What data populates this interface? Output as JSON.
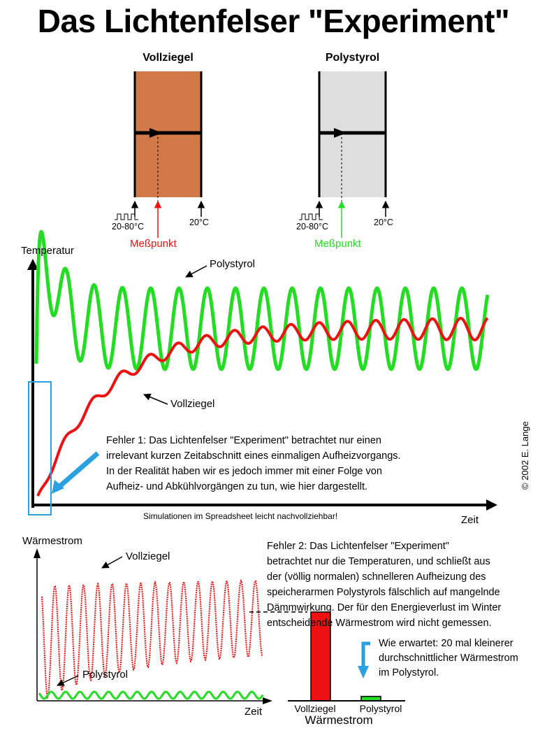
{
  "title": "Das Lichtenfelser \"Experiment\"",
  "walls": {
    "brick": {
      "label": "Vollziegel",
      "color": "#d2794a"
    },
    "poly": {
      "label": "Polystyrol",
      "color": "#dedede"
    },
    "inside_temp": "20-80°C",
    "outside_temp": "20°C",
    "measure_label": "Meßpunkt"
  },
  "temperature_chart": {
    "ylabel": "Temperatur",
    "xlabel": "Zeit",
    "caption": "Simulationen im Spreadsheet leicht nachvollziehbar!",
    "label_poly": "Polystyrol",
    "label_brick": "Vollziegel",
    "note": [
      "Fehler 1: Das Lichtenfelser \"Experiment\" betrachtet nur einen",
      "irrelevant kurzen Zeitabschnitt eines einmaligen Aufheizvorgangs.",
      "In der Realität haben wir es jedoch immer mit einer Folge von",
      "Aufheiz- und Abkühlvorgängen zu tun, wie hier dargestellt."
    ],
    "colors": {
      "poly": "#22dd22",
      "brick": "#ee1111",
      "highlight": "#2aa0e0"
    }
  },
  "heatflow_chart": {
    "ylabel": "Wärmestrom",
    "xlabel": "Zeit",
    "label_brick": "Vollziegel",
    "label_poly": "Polystyrol",
    "note": [
      "Fehler 2: Das Lichtenfelser \"Experiment\"",
      "betrachtet nur die Temperaturen, und schließt aus",
      "der (völlig normalen) schnelleren Aufheizung des",
      "speicherarmen Polystyrols fälschlich auf mangelnde",
      "Dämmwirkung. Der für den Energieverlust im Winter",
      "entscheidende Wärmestrom wird nicht gemessen."
    ]
  },
  "chart_data": {
    "type": "bar",
    "title": "Wärmestrom",
    "categories": [
      "Vollziegel",
      "Polystyrol"
    ],
    "values": [
      20,
      1
    ],
    "colors": [
      "#ee1111",
      "#22dd22"
    ],
    "annotation": [
      "Wie erwartet: 20 mal kleinerer",
      "durchschnittlicher Wärmestrom",
      "im Polystyrol."
    ]
  },
  "copyright": "© 2002 E. Lange"
}
